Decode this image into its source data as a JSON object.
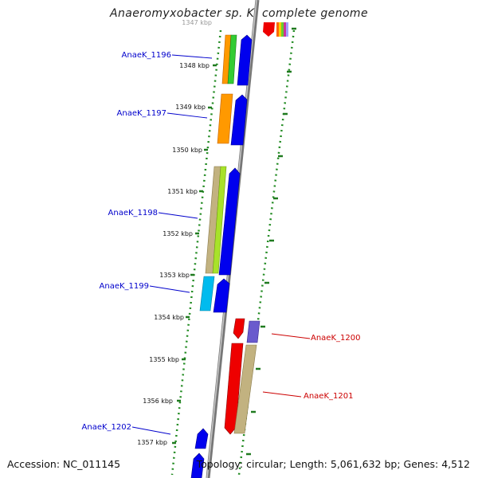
{
  "title": "Anaeromyxobacter sp. K, complete genome",
  "footer": {
    "accession": "Accession: NC_011145",
    "topology": "Topology: circular; Length: 5,061,632 bp; Genes: 4,512"
  },
  "ticks": [
    "1347 kbp",
    "1348 kbp",
    "1349 kbp",
    "1350 kbp",
    "1351 kbp",
    "1352 kbp",
    "1353 kbp",
    "1354 kbp",
    "1355 kbp",
    "1356 kbp",
    "1357 kbp"
  ],
  "gene_labels": [
    {
      "name": "AnaeK_1196",
      "color": "#0000cc"
    },
    {
      "name": "AnaeK_1197",
      "color": "#0000cc"
    },
    {
      "name": "AnaeK_1198",
      "color": "#0000cc"
    },
    {
      "name": "AnaeK_1199",
      "color": "#0000cc"
    },
    {
      "name": "AnaeK_1200",
      "color": "#cc0000"
    },
    {
      "name": "AnaeK_1201",
      "color": "#cc0000"
    },
    {
      "name": "AnaeK_1202",
      "color": "#0000cc"
    }
  ],
  "colors": {
    "backbone": "#8c8c8c",
    "dots": "#228b22",
    "tick_marks": "#1f7a1f",
    "blue_arrow": "#0000ee",
    "red_arrow": "#ee0000",
    "orange": "#ff9900",
    "green": "#33cc33",
    "khaki": "#c2b280",
    "lime": "#a8e22a",
    "cyan": "#00bbee",
    "violet": "#6a5acd",
    "rainbow": [
      "#ff6600",
      "#ffcc00",
      "#66cc33",
      "#cc3399"
    ]
  }
}
